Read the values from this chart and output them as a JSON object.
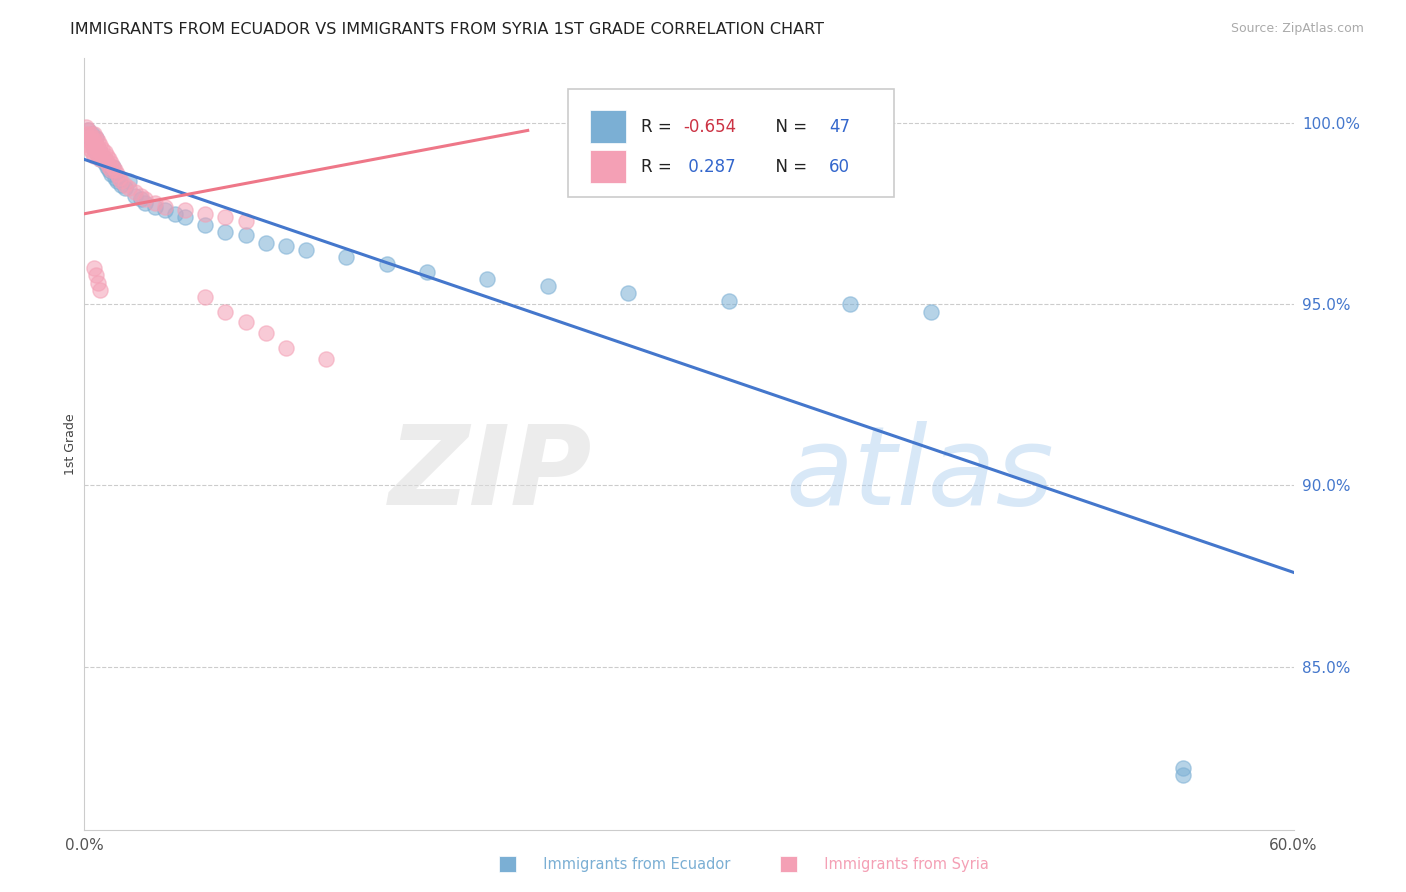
{
  "title": "IMMIGRANTS FROM ECUADOR VS IMMIGRANTS FROM SYRIA 1ST GRADE CORRELATION CHART",
  "source": "Source: ZipAtlas.com",
  "ylabel": "1st Grade",
  "xlim": [
    0.0,
    0.6
  ],
  "ylim": [
    0.805,
    1.018
  ],
  "yticks": [
    0.85,
    0.9,
    0.95,
    1.0
  ],
  "ytick_labels": [
    "85.0%",
    "90.0%",
    "95.0%",
    "100.0%"
  ],
  "xticks": [
    0.0,
    0.6
  ],
  "xtick_labels": [
    "0.0%",
    "60.0%"
  ],
  "ecuador_R": -0.654,
  "ecuador_N": 47,
  "syria_R": 0.287,
  "syria_N": 60,
  "ecuador_color": "#7BAFD4",
  "syria_color": "#F4A0B5",
  "ecuador_line_color": "#4477CC",
  "syria_line_color": "#EE7788",
  "legend_text_color": "#3366CC",
  "legend_r_neg_color": "#CC3344",
  "legend_r_pos_color": "#3366CC",
  "legend_n_color": "#3366CC",
  "ecu_line_x0": 0.0,
  "ecu_line_y0": 0.99,
  "ecu_line_x1": 0.6,
  "ecu_line_y1": 0.876,
  "syr_line_x0": 0.0,
  "syr_line_y0": 0.975,
  "syr_line_x1": 0.22,
  "syr_line_y1": 0.998
}
